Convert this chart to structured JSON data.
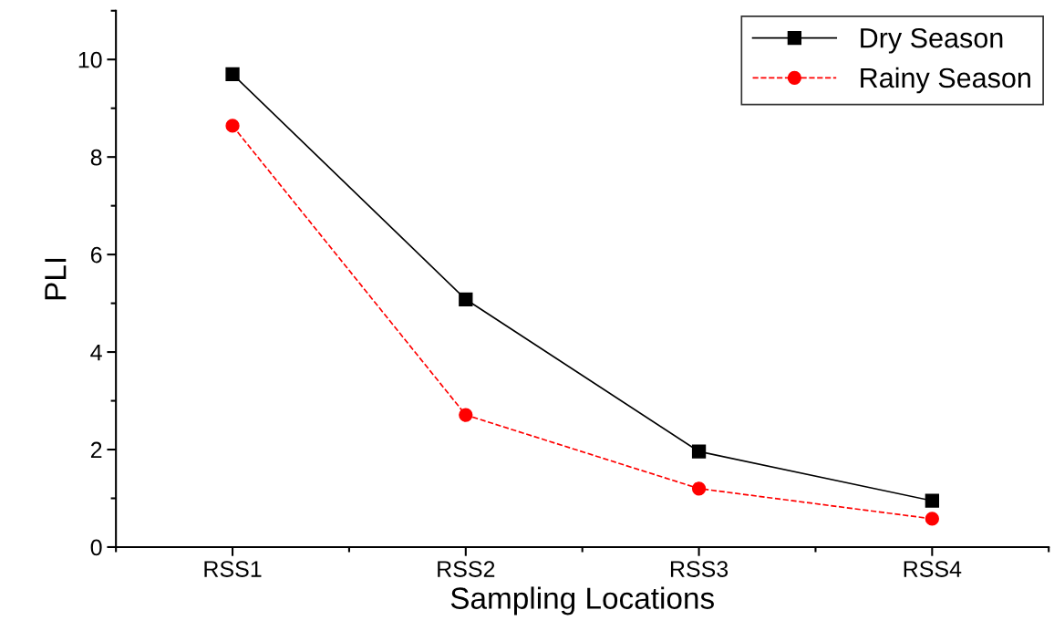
{
  "chart_data": {
    "type": "line",
    "xlabel": "Sampling Locations",
    "ylabel": "PLI",
    "categories": [
      "RSS1",
      "RSS2",
      "RSS3",
      "RSS4"
    ],
    "series": [
      {
        "name": "Dry Season",
        "color": "#000000",
        "values": [
          9.7,
          5.08,
          1.96,
          0.95
        ],
        "marker": "square",
        "line_style": "solid"
      },
      {
        "name": "Rainy Season",
        "color": "#ff0000",
        "values": [
          8.64,
          2.71,
          1.2,
          0.58
        ],
        "marker": "circle",
        "line_style": "dashed"
      }
    ],
    "ylim": [
      0,
      11
    ],
    "yticks": [
      0,
      2,
      4,
      6,
      8,
      10
    ],
    "grid": false,
    "legend": "top right"
  }
}
